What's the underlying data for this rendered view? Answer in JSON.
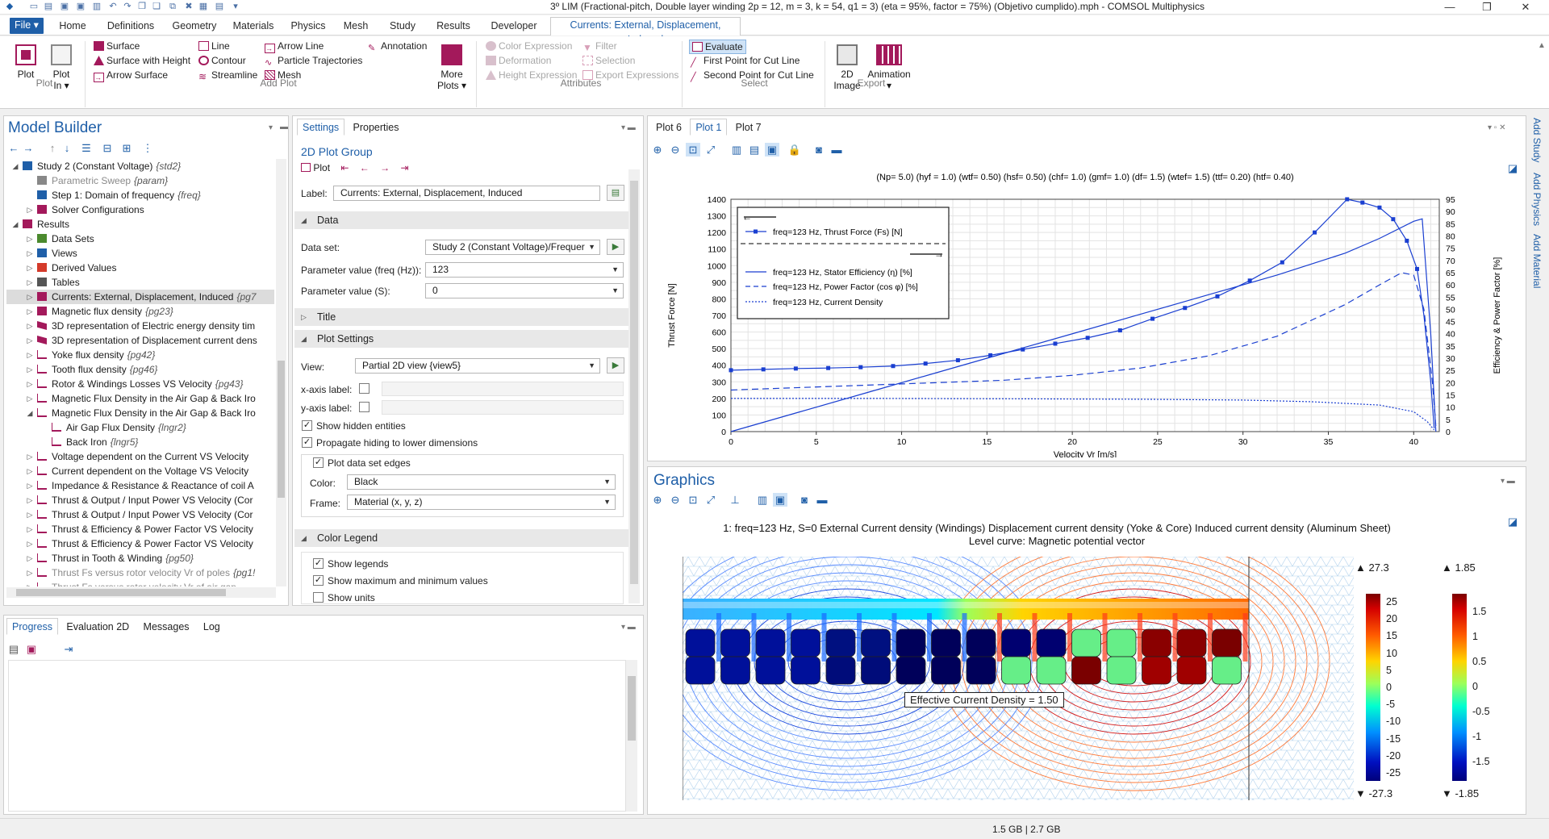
{
  "window": {
    "title": "3º LIM (Fractional-pitch, Double layer winding 2p = 12, m = 3, k = 54, q1 = 3) (eta = 95%, factor = 75%) (Objetivo cumplido).mph - COMSOL Multiphysics",
    "minimize": "—",
    "maximize": "❐",
    "close": "✕"
  },
  "menu": {
    "file": "File ▾",
    "tabs": [
      "Home",
      "Definitions",
      "Geometry",
      "Materials",
      "Physics",
      "Mesh",
      "Study",
      "Results",
      "Developer"
    ],
    "active_tab": "Currents: External, Displacement, Induced"
  },
  "ribbon": {
    "plot": "Plot",
    "plot_in": "Plot",
    "plot_in2": "In ▾",
    "group_plot": "Plot",
    "surface": "Surface",
    "surface_height": "Surface with Height",
    "arrow_surface": "Arrow Surface",
    "line": "Line",
    "contour": "Contour",
    "streamline": "Streamline",
    "arrow_line": "Arrow Line",
    "particle_traj": "Particle Trajectories",
    "mesh": "Mesh",
    "annotation": "Annotation",
    "more_plots": "More",
    "more_plots2": "Plots ▾",
    "group_add_plot": "Add Plot",
    "color_expression": "Color Expression",
    "deformation": "Deformation",
    "height_expression": "Height Expression",
    "filter": "Filter",
    "selection": "Selection",
    "export_expressions": "Export Expressions",
    "group_attributes": "Attributes",
    "evaluate": "Evaluate",
    "first_point": "First Point for Cut Line",
    "second_point": "Second Point for Cut Line",
    "group_select": "Select",
    "image_2d": "2D",
    "image_2d2": "Image",
    "animation": "Animation",
    "animation2": "▾",
    "group_export": "Export"
  },
  "model_builder": {
    "title": "Model Builder",
    "items": [
      {
        "indent": 1,
        "expand": "◢",
        "icon": "study",
        "label": "Study 2 (Constant Voltage)",
        "tag": "{std2}"
      },
      {
        "indent": 2,
        "expand": "",
        "icon": "param",
        "label": "Parametric Sweep",
        "tag": "{param}",
        "dim": true
      },
      {
        "indent": 2,
        "expand": "",
        "icon": "step",
        "label": "Step 1: Domain of frequency",
        "tag": "{freq}"
      },
      {
        "indent": 2,
        "expand": "▷",
        "icon": "solver",
        "label": "Solver Configurations",
        "tag": ""
      },
      {
        "indent": 1,
        "expand": "◢",
        "icon": "results",
        "label": "Results",
        "tag": ""
      },
      {
        "indent": 2,
        "expand": "▷",
        "icon": "data",
        "label": "Data Sets",
        "tag": ""
      },
      {
        "indent": 2,
        "expand": "▷",
        "icon": "views",
        "label": "Views",
        "tag": ""
      },
      {
        "indent": 2,
        "expand": "▷",
        "icon": "derived",
        "label": "Derived Values",
        "tag": ""
      },
      {
        "indent": 2,
        "expand": "▷",
        "icon": "tables",
        "label": "Tables",
        "tag": ""
      },
      {
        "indent": 2,
        "expand": "▷",
        "icon": "plot2d",
        "label": "Currents: External, Displacement, Induced",
        "tag": "{pg7",
        "sel": true
      },
      {
        "indent": 2,
        "expand": "▷",
        "icon": "plot2d",
        "label": "Magnetic flux density",
        "tag": "{pg23}"
      },
      {
        "indent": 2,
        "expand": "▷",
        "icon": "plot3d",
        "label": "3D representation of Electric energy density tim",
        "tag": ""
      },
      {
        "indent": 2,
        "expand": "▷",
        "icon": "plot3d",
        "label": "3D representation of Displacement current dens",
        "tag": ""
      },
      {
        "indent": 2,
        "expand": "▷",
        "icon": "plot1d",
        "label": "Yoke flux density",
        "tag": "{pg42}"
      },
      {
        "indent": 2,
        "expand": "▷",
        "icon": "plot1d",
        "label": "Tooth flux density",
        "tag": "{pg46}"
      },
      {
        "indent": 2,
        "expand": "▷",
        "icon": "plot1d",
        "label": "Rotor  & Windings Losses VS Velocity",
        "tag": "{pg43}"
      },
      {
        "indent": 2,
        "expand": "▷",
        "icon": "plot1d",
        "label": "Magnetic Flux Density in the Air Gap & Back Iro",
        "tag": ""
      },
      {
        "indent": 2,
        "expand": "◢",
        "icon": "plot1d",
        "label": "Magnetic Flux Density in the Air Gap & Back Iro",
        "tag": ""
      },
      {
        "indent": 3,
        "expand": "",
        "icon": "line",
        "label": "Air Gap Flux Density",
        "tag": "{lngr2}"
      },
      {
        "indent": 3,
        "expand": "",
        "icon": "line",
        "label": "Back Iron",
        "tag": "{lngr5}"
      },
      {
        "indent": 2,
        "expand": "▷",
        "icon": "plot1d",
        "label": "Voltage dependent on the Current VS Velocity",
        "tag": ""
      },
      {
        "indent": 2,
        "expand": "▷",
        "icon": "plot1d",
        "label": "Current dependent on the Voltage VS Velocity",
        "tag": ""
      },
      {
        "indent": 2,
        "expand": "▷",
        "icon": "plot1d",
        "label": "Impedance & Resistance & Reactance of coil A",
        "tag": ""
      },
      {
        "indent": 2,
        "expand": "▷",
        "icon": "plot1d",
        "label": "Thrust & Output / Input Power VS Velocity (Cor",
        "tag": ""
      },
      {
        "indent": 2,
        "expand": "▷",
        "icon": "plot1d",
        "label": "Thrust & Output / Input Power VS Velocity (Cor",
        "tag": ""
      },
      {
        "indent": 2,
        "expand": "▷",
        "icon": "plot1d",
        "label": "Thrust & Efficiency & Power Factor VS Velocity",
        "tag": ""
      },
      {
        "indent": 2,
        "expand": "▷",
        "icon": "plot1d",
        "label": "Thrust & Efficiency & Power Factor VS Velocity",
        "tag": ""
      },
      {
        "indent": 2,
        "expand": "▷",
        "icon": "plot1d",
        "label": "Thrust in Tooth & Winding",
        "tag": "{pg50}"
      },
      {
        "indent": 2,
        "expand": "▷",
        "icon": "plot1d",
        "label": "Thrust Fs versus rotor velocity Vr of poles",
        "tag": "{pg1!",
        "dim": true
      },
      {
        "indent": 2,
        "expand": "▷",
        "icon": "plot1d",
        "label": "Thrust Fs versus rotor velocity Vr of air gap",
        "tag": "",
        "dim": true
      }
    ]
  },
  "bottom_tabs": [
    "Progress",
    "Evaluation 2D",
    "Messages",
    "Log"
  ],
  "settings": {
    "tabs": [
      "Settings",
      "Properties"
    ],
    "heading": "2D Plot Group",
    "plot_btn": "Plot",
    "label_caption": "Label:",
    "label_value": "Currents: External, Displacement, Induced",
    "sec_data": "Data",
    "dataset_caption": "Data set:",
    "dataset_value": "Study 2 (Constant Voltage)/Frequer",
    "param_freq_caption": "Parameter value (freq (Hz)):",
    "param_freq_value": "123",
    "param_s_caption": "Parameter value (S):",
    "param_s_value": "0",
    "sec_title": "Title",
    "sec_plot_settings": "Plot Settings",
    "view_caption": "View:",
    "view_value": "Partial 2D view {view5}",
    "xaxis_caption": "x-axis label:",
    "yaxis_caption": "y-axis label:",
    "show_hidden": "Show hidden entities",
    "propagate": "Propagate hiding to lower dimensions",
    "plot_edges": "Plot data set edges",
    "color_caption": "Color:",
    "color_value": "Black",
    "frame_caption": "Frame:",
    "frame_value": "Material  (x, y, z)",
    "sec_color_legend": "Color Legend",
    "show_legends": "Show legends",
    "show_maxmin": "Show maximum and minimum values",
    "show_units": "Show units"
  },
  "plot_window": {
    "tabs": [
      "Plot 6",
      "Plot 1",
      "Plot 7"
    ],
    "active": "Plot 1",
    "side_tabs": [
      "Add Study",
      "Add Physics",
      "Add Material"
    ]
  },
  "chart_data": {
    "type": "line",
    "title": "(Np= 5.0) (hyf = 1.0) (wtf= 0.50) (hsf= 0.50) (chf= 1.0) (gmf= 1.0) (df= 1.5) (wtef= 1.5) (ttf= 0.20) (htf= 0.40)",
    "xlabel": "Velocity Vr [m/s]",
    "ylabel": "Thrust Force [N]",
    "y2label": "Efficiency & Power Factor [%]",
    "xlim": [
      0,
      41.5
    ],
    "ylim": [
      0,
      1400
    ],
    "y2lim": [
      0,
      95
    ],
    "xticks": [
      0,
      5,
      10,
      15,
      20,
      25,
      30,
      35,
      40
    ],
    "yticks": [
      0,
      100,
      200,
      300,
      400,
      500,
      600,
      700,
      800,
      900,
      1000,
      1100,
      1200,
      1300,
      1400
    ],
    "y2ticks": [
      0,
      5,
      10,
      15,
      20,
      25,
      30,
      35,
      40,
      45,
      50,
      55,
      60,
      65,
      70,
      75,
      80,
      85,
      90,
      95
    ],
    "grid": true,
    "legend": {
      "position": "top-left"
    },
    "series": [
      {
        "name": "freq=123 Hz, Thrust Force (Fs) [N]",
        "axis": "left",
        "style": "solid-marker",
        "x": [
          0,
          1.9,
          3.8,
          5.7,
          7.6,
          9.5,
          11.4,
          13.3,
          15.2,
          17.1,
          19.0,
          20.9,
          22.8,
          24.7,
          26.6,
          28.5,
          30.4,
          32.3,
          34.2,
          36.1,
          37.0,
          38.0,
          38.8,
          39.6,
          40.2,
          40.6,
          41.0,
          41.2
        ],
        "y": [
          370,
          375,
          380,
          383,
          388,
          395,
          410,
          430,
          460,
          495,
          530,
          565,
          610,
          680,
          745,
          815,
          910,
          1020,
          1200,
          1400,
          1380,
          1350,
          1280,
          1150,
          980,
          700,
          300,
          20
        ]
      },
      {
        "name": "freq=123 Hz, Stator Efficiency (η) [%]",
        "axis": "right",
        "style": "solid",
        "x": [
          0,
          4,
          8,
          12,
          16,
          20,
          24,
          28,
          32,
          36,
          38,
          40,
          40.5,
          41.0,
          41.3
        ],
        "y": [
          0,
          8,
          16,
          24,
          32,
          40,
          48,
          56,
          64,
          73,
          79,
          86,
          87,
          40,
          0
        ]
      },
      {
        "name": "freq=123 Hz, Power Factor (cos φ) [%]",
        "axis": "right",
        "style": "dashed",
        "x": [
          0,
          4,
          8,
          12,
          16,
          20,
          24,
          28,
          32,
          36,
          38,
          39.3,
          40.0,
          40.6,
          41.1,
          41.3
        ],
        "y": [
          17,
          18,
          19,
          20,
          21,
          23,
          26,
          31,
          39,
          52,
          60,
          65,
          64,
          50,
          20,
          2
        ]
      },
      {
        "name": "freq=123 Hz, Current Density",
        "axis": "left",
        "style": "dotted",
        "x": [
          0,
          8,
          16,
          24,
          30,
          34,
          38,
          40,
          40.8,
          41.2
        ],
        "y": [
          200,
          200,
          198,
          195,
          190,
          180,
          160,
          120,
          60,
          10
        ]
      }
    ]
  },
  "graphics": {
    "title": "Graphics",
    "line1": "1: freq=123 Hz, S=0  External Current density (Windings) Displacement current density (Yoke & Core) Induced current density (Aluminum Sheet)",
    "line2": "Level curve: Magnetic potential vector",
    "tooltip": "Effective Current Density = 1.50",
    "legend1": {
      "max": "▲ 27.3",
      "min": "▼ -27.3",
      "ticks": [
        "25",
        "20",
        "15",
        "10",
        "5",
        "0",
        "-5",
        "-10",
        "-15",
        "-20",
        "-25"
      ]
    },
    "legend2": {
      "max": "▲ 1.85",
      "min": "▼ -1.85",
      "ticks": [
        "1.5",
        "1",
        "0.5",
        "0",
        "-0.5",
        "-1",
        "-1.5"
      ]
    }
  },
  "status": {
    "memory": "1.5 GB | 2.7 GB"
  },
  "colors": {
    "accent": "#1f5fa8",
    "plot_purple": "#a3195b",
    "selection": "#dcdcdc"
  }
}
